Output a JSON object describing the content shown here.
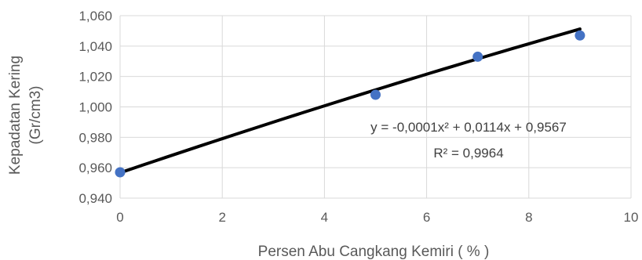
{
  "chart_data": {
    "type": "scatter",
    "title": "",
    "xlabel": "Persen Abu Cangkang Kemiri ( % )",
    "ylabel": [
      "Kepadatan Kering",
      "(Gr/cm3)"
    ],
    "xlim": [
      0,
      10
    ],
    "ylim": [
      0.94,
      1.06
    ],
    "x_ticks": [
      0,
      2,
      4,
      6,
      8,
      10
    ],
    "x_tick_labels": [
      "0",
      "2",
      "4",
      "6",
      "8",
      "10"
    ],
    "y_ticks": [
      0.94,
      0.96,
      0.98,
      1.0,
      1.02,
      1.04,
      1.06
    ],
    "y_tick_labels": [
      "0,940",
      "0,960",
      "0,980",
      "1,000",
      "1,020",
      "1,040",
      "1,060"
    ],
    "grid": true,
    "series": [
      {
        "x": [
          0,
          5,
          7,
          9
        ],
        "y": [
          0.957,
          1.008,
          1.033,
          1.047
        ],
        "marker_color": "#4472C4"
      }
    ],
    "trendline": {
      "type": "polynomial",
      "coefficients": [
        -0.0001,
        0.0114,
        0.9567
      ],
      "x_range": [
        0,
        9
      ],
      "color": "#000000",
      "equation": "y = -0,0001x² + 0,0114x + 0,9567",
      "r_squared": "R² = 0,9964"
    }
  },
  "colors": {
    "grid": "#d9d9d9",
    "text": "#595959"
  }
}
